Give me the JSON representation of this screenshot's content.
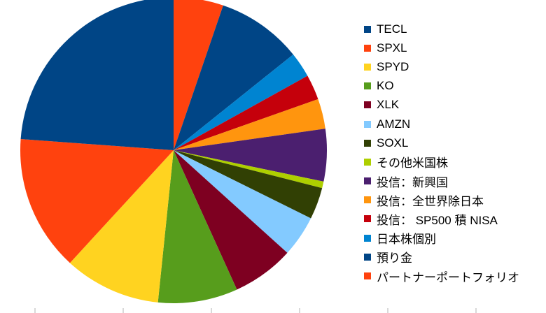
{
  "chart_data": {
    "type": "pie",
    "title": "",
    "legend_position": "right",
    "start": "12 o'clock, clockwise",
    "slices": [
      {
        "label": "パートナーポートフォリオ",
        "value": 5.3,
        "color": "#FF420E"
      },
      {
        "label": "預り金",
        "value": 9.1,
        "color": "#004586"
      },
      {
        "label": "日本株個別",
        "value": 2.7,
        "color": "#0084D1"
      },
      {
        "label": "投信： SP500 積 NISA",
        "value": 2.7,
        "color": "#C5000B"
      },
      {
        "label": "投信：全世界除日本",
        "value": 3.2,
        "color": "#FF950E"
      },
      {
        "label": "投信：新興国",
        "value": 5.6,
        "color": "#4B1F6F"
      },
      {
        "label": "その他米国株",
        "value": 0.7,
        "color": "#AECF00"
      },
      {
        "label": "SOXL",
        "value": 3.4,
        "color": "#314004"
      },
      {
        "label": "AMZN",
        "value": 4.4,
        "color": "#83CAFF"
      },
      {
        "label": "XLK",
        "value": 6.6,
        "color": "#7E0021"
      },
      {
        "label": "KO",
        "value": 8.5,
        "color": "#579D1C"
      },
      {
        "label": "SPYD",
        "value": 10.3,
        "color": "#FFD320"
      },
      {
        "label": "SPXL",
        "value": 14.5,
        "color": "#FF420E"
      },
      {
        "label": "TECL",
        "value": 24.1,
        "color": "#004586"
      }
    ]
  },
  "legend": {
    "items": [
      {
        "label": "TECL",
        "color": "#004586"
      },
      {
        "label": "SPXL",
        "color": "#FF420E"
      },
      {
        "label": "SPYD",
        "color": "#FFD320"
      },
      {
        "label": "KO",
        "color": "#579D1C"
      },
      {
        "label": "XLK",
        "color": "#7E0021"
      },
      {
        "label": "AMZN",
        "color": "#83CAFF"
      },
      {
        "label": "SOXL",
        "color": "#314004"
      },
      {
        "label": "その他米国株",
        "color": "#AECF00"
      },
      {
        "label": "投信：新興国",
        "color": "#4B1F6F"
      },
      {
        "label": "投信：全世界除日本",
        "color": "#FF950E"
      },
      {
        "label": "投信： SP500 積 NISA",
        "color": "#C5000B"
      },
      {
        "label": "日本株個別",
        "color": "#0084D1"
      },
      {
        "label": "預り金",
        "color": "#004586"
      },
      {
        "label": "パートナーポートフォリオ",
        "color": "#FF420E"
      }
    ]
  }
}
